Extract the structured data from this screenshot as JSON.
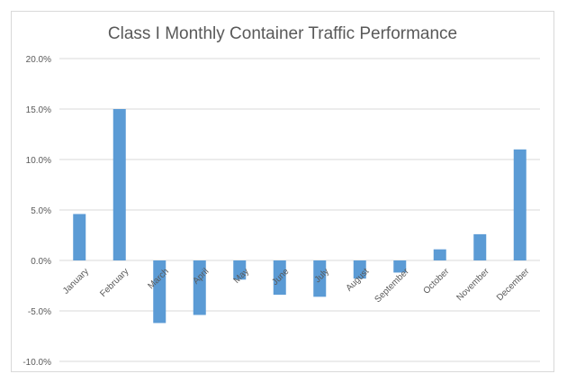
{
  "chart_data": {
    "type": "bar",
    "title": "Class I Monthly Container Traffic Performance",
    "xlabel": "",
    "ylabel": "",
    "categories": [
      "January",
      "February",
      "March",
      "April",
      "May",
      "June",
      "July",
      "August",
      "September",
      "October",
      "November",
      "December"
    ],
    "values": [
      4.6,
      15.0,
      -6.2,
      -5.4,
      -1.9,
      -3.4,
      -3.6,
      -1.8,
      -1.2,
      1.1,
      2.6,
      11.0
    ],
    "ylim": [
      -10,
      20
    ],
    "yticks": [
      20,
      15,
      10,
      5,
      0,
      -5,
      -10
    ],
    "ytick_labels": [
      "20.0%",
      "15.0%",
      "10.0%",
      "5.0%",
      "0.0%",
      "-5.0%",
      "-10.0%"
    ],
    "grid": true,
    "legend": "none",
    "bar_color": "#5b9bd5",
    "grid_color": "#d9d9d9"
  }
}
